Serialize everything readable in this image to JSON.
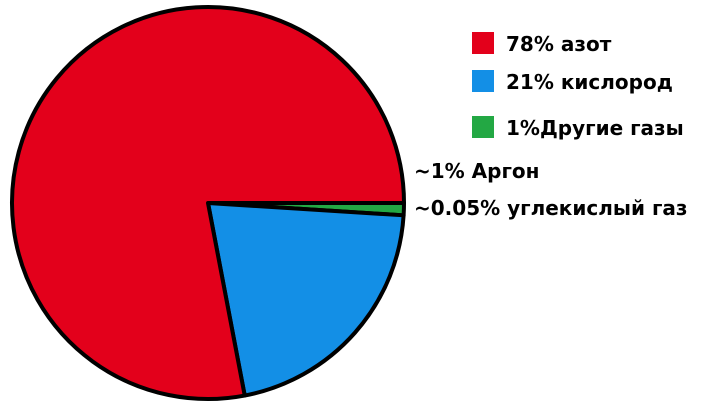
{
  "chart_data": {
    "type": "pie",
    "slices": [
      {
        "label": "78% азот",
        "value": 78,
        "color": "#e3001b"
      },
      {
        "label": "21% кислород",
        "value": 21,
        "color": "#138fe6"
      },
      {
        "label": "1%Другие газы",
        "value": 1,
        "color": "#23a844"
      }
    ],
    "legend_position": "top-right",
    "annotations": [
      "~1% Аргон",
      "~0.05% углекислый газ"
    ]
  }
}
